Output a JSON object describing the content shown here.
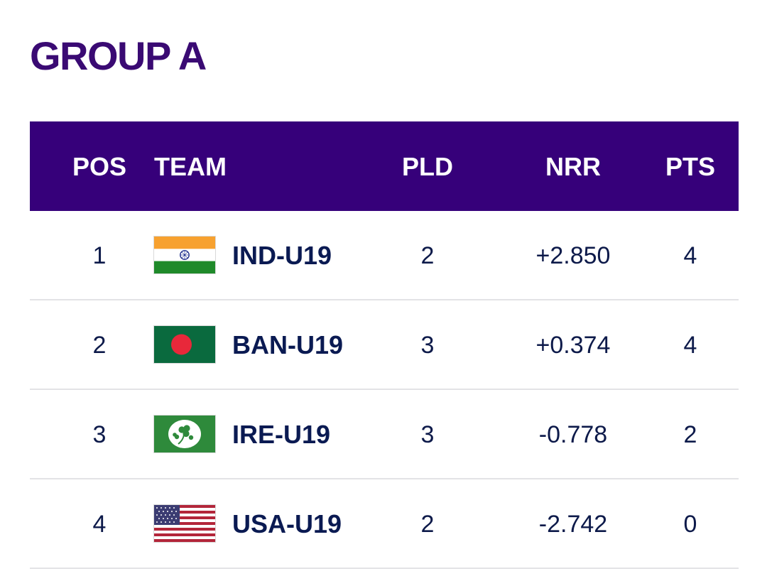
{
  "group": {
    "title": "GROUP A"
  },
  "table": {
    "headers": {
      "pos": "POS",
      "team": "TEAM",
      "pld": "PLD",
      "nrr": "NRR",
      "pts": "PTS"
    },
    "rows": [
      {
        "pos": "1",
        "team": "IND-U19",
        "flag_icon": "india-flag-icon",
        "pld": "2",
        "nrr": "+2.850",
        "pts": "4"
      },
      {
        "pos": "2",
        "team": "BAN-U19",
        "flag_icon": "bangladesh-flag-icon",
        "pld": "3",
        "nrr": "+0.374",
        "pts": "4"
      },
      {
        "pos": "3",
        "team": "IRE-U19",
        "flag_icon": "ireland-cricket-flag-icon",
        "pld": "3",
        "nrr": "-0.778",
        "pts": "2"
      },
      {
        "pos": "4",
        "team": "USA-U19",
        "flag_icon": "usa-flag-icon",
        "pld": "2",
        "nrr": "-2.742",
        "pts": "0"
      }
    ]
  },
  "colors": {
    "title": "#3a0a73",
    "header_bg": "#36007a",
    "header_text": "#ffffff",
    "body_text": "#0d1a4a",
    "divider": "#e3e3e6"
  }
}
